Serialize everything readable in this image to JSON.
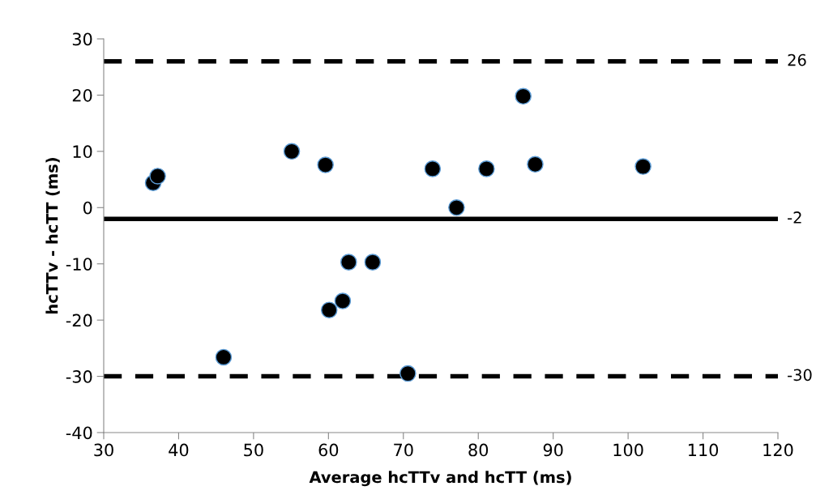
{
  "chart_data": {
    "type": "scatter",
    "xlabel": "Average hcTTv and hcTT (ms)",
    "ylabel": "hcTTv - hcTT (ms)",
    "x": [
      36.6,
      37.2,
      46,
      55.1,
      59.6,
      60.1,
      61.9,
      62.7,
      65.9,
      70.6,
      73.9,
      77.1,
      81.1,
      86,
      87.6,
      102
    ],
    "series": [
      {
        "color": "#000000",
        "values": [
          4.4,
          5.6,
          -26.6,
          10,
          7.6,
          -18.2,
          -16.6,
          -9.7,
          -9.7,
          -29.5,
          6.9,
          0,
          6.9,
          19.8,
          7.7,
          7.3
        ]
      }
    ],
    "marker": "circle",
    "xlim": [
      30,
      120
    ],
    "xticks": [
      30,
      40,
      50,
      60,
      70,
      80,
      90,
      100,
      110,
      120
    ],
    "ylim": [
      -40,
      30
    ],
    "yticks": [
      -40,
      -30,
      -20,
      -10,
      0,
      10,
      20,
      30
    ],
    "ref_lines": [
      {
        "axis": "y",
        "value": 26,
        "label": "26",
        "color": "#000000",
        "line_style": "dashed"
      },
      {
        "axis": "y",
        "value": -2,
        "label": "-2",
        "color": "#000000",
        "line_style": "solid"
      },
      {
        "axis": "y",
        "value": -30,
        "label": "-30",
        "color": "#000000",
        "line_style": "dashed"
      }
    ],
    "grid": false,
    "legend": false
  }
}
